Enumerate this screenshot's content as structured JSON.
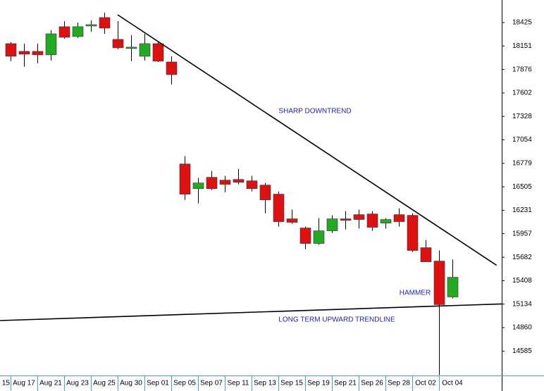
{
  "chart_data": {
    "type": "candlestick",
    "categories": [
      "15",
      "Aug 17",
      null,
      "Aug 21",
      null,
      "Aug 23",
      null,
      "Aug 25",
      null,
      "Aug 30",
      null,
      "Sep 01",
      null,
      "Sep 05",
      null,
      "Sep 07",
      null,
      "Sep 11",
      null,
      "Sep 13",
      null,
      "Sep 15",
      null,
      "Sep 19",
      null,
      "Sep 21",
      null,
      "Sep 26",
      null,
      "Sep 28",
      null,
      "Oct 02",
      null,
      "Oct 04"
    ],
    "open": [
      18178,
      18088,
      18088,
      18047,
      18376,
      18261,
      18384,
      18483,
      18228,
      18121,
      18030,
      18178,
      17964,
      16772,
      16484,
      16616,
      16583,
      16591,
      16575,
      16525,
      16419,
      16131,
      16024,
      15843,
      15991,
      16131,
      16180,
      16188,
      16081,
      16180,
      16172,
      15794,
      15637,
      15218
    ],
    "high": [
      18195,
      18178,
      18178,
      18335,
      18441,
      18425,
      18450,
      18540,
      18441,
      18277,
      18293,
      18195,
      18030,
      16863,
      16608,
      16690,
      16633,
      16715,
      16633,
      16550,
      16451,
      16238,
      16040,
      16139,
      16172,
      16221,
      16238,
      16221,
      16139,
      16254,
      16196,
      15884,
      15761,
      15654
    ],
    "low": [
      17974,
      17907,
      17948,
      17981,
      18236,
      18244,
      18318,
      18293,
      18113,
      17973,
      17981,
      17964,
      17701,
      16353,
      16312,
      16468,
      16443,
      16534,
      16451,
      16196,
      16040,
      16073,
      15777,
      15827,
      15966,
      16007,
      16016,
      15991,
      16016,
      16040,
      15744,
      15629,
      14305,
      15202
    ],
    "close": [
      18030,
      18055,
      18047,
      18293,
      18252,
      18376,
      18400,
      18359,
      18129,
      18137,
      18178,
      17973,
      17816,
      16419,
      16550,
      16484,
      16534,
      16558,
      16484,
      16353,
      16098,
      16090,
      15843,
      15991,
      16131,
      16114,
      16123,
      16032,
      16123,
      16098,
      15761,
      15629,
      15128,
      15448
    ],
    "up_color": "#22aa22",
    "down_color": "#dd1111",
    "ylim": [
      14300,
      18688
    ],
    "yticks": [
      14585,
      14860,
      15134,
      15408,
      15682,
      15957,
      16231,
      16505,
      16779,
      17054,
      17328,
      17602,
      17876,
      18151,
      18425
    ],
    "trendlines": [
      {
        "x": [
          8,
          36.3
        ],
        "y": [
          18515,
          15588
        ]
      },
      {
        "x": [
          -0.8,
          36.7
        ],
        "y": [
          14942,
          15136
        ]
      }
    ],
    "annotations": [
      "SHARP DOWNTREND",
      "HAMMER",
      "LONG TERM UPWARD TRENDLINE"
    ]
  }
}
